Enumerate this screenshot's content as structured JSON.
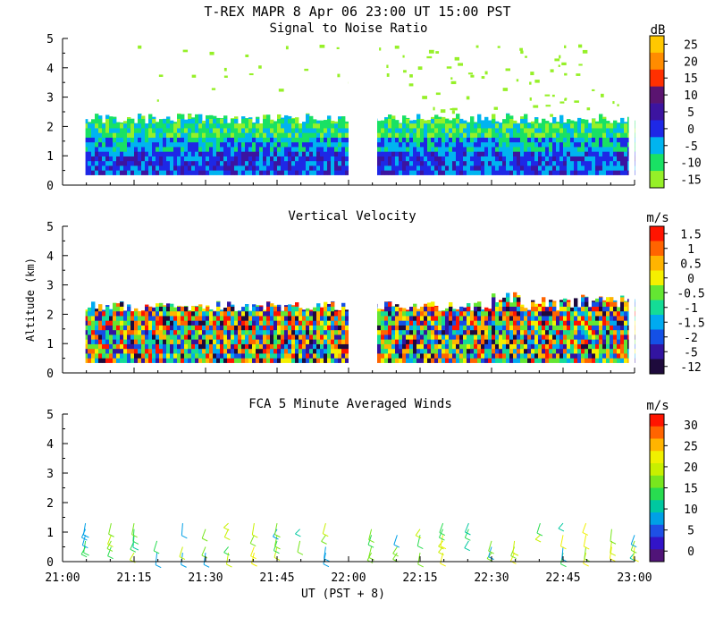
{
  "header": {
    "title": "T-REX  MAPR  8 Apr 06  23:00 UT  15:00  PST"
  },
  "colors": {
    "white": "#ffffff"
  },
  "chart_data": [
    {
      "type": "heatmap",
      "title": "Signal to Noise Ratio",
      "ylabel": "",
      "ylim": [
        0,
        5
      ],
      "y_ticks": [
        "0",
        "1",
        "2",
        "3",
        "4",
        "5"
      ],
      "x_range_hours": [
        21.0,
        23.0
      ],
      "data_gaps_hours": [
        [
          21.0,
          21.08
        ],
        [
          22.0,
          22.1
        ],
        [
          22.98,
          23.0
        ]
      ],
      "colorbar": {
        "unit": "dB",
        "labels": [
          "25",
          "20",
          "15",
          "10",
          "5",
          "0",
          "-5",
          "-10",
          "-15"
        ],
        "colors": [
          "#ffc800",
          "#ff8c00",
          "#ff3000",
          "#5a1470",
          "#3c14a0",
          "#1e28e6",
          "#00b4f0",
          "#19e164",
          "#96f028"
        ]
      }
    },
    {
      "type": "heatmap",
      "title": "Vertical Velocity",
      "ylabel": "Altitude (km)",
      "ylim": [
        0,
        5
      ],
      "y_ticks": [
        "0",
        "1",
        "2",
        "3",
        "4",
        "5"
      ],
      "x_range_hours": [
        21.0,
        23.0
      ],
      "data_gaps_hours": [
        [
          21.0,
          21.08
        ],
        [
          22.0,
          22.1
        ],
        [
          22.98,
          23.0
        ]
      ],
      "colorbar": {
        "unit": "m/s",
        "labels": [
          "1.5",
          "1",
          "0.5",
          "0",
          "-0.5",
          "-1",
          "-1.5",
          "-2",
          "-5",
          "-12"
        ],
        "colors": [
          "#ff1400",
          "#ff6400",
          "#ffb400",
          "#f5f000",
          "#64e632",
          "#14dc96",
          "#00aaf0",
          "#1450e6",
          "#3214a0",
          "#1e0a3c"
        ]
      }
    },
    {
      "type": "barbs",
      "title": "FCA 5 Minute Averaged Winds",
      "ylim": [
        0,
        5
      ],
      "y_ticks": [
        "0",
        "1",
        "2",
        "3",
        "4",
        "5"
      ],
      "x_ticks": [
        "21:00",
        "21:15",
        "21:30",
        "21:45",
        "22:00",
        "22:15",
        "22:30",
        "22:45",
        "23:00"
      ],
      "x_tick_hours": [
        21.0,
        21.25,
        21.5,
        21.75,
        22.0,
        22.25,
        22.5,
        22.75,
        23.0
      ],
      "xlabel": "UT  (PST + 8)",
      "barb_times_hours": [
        21.08,
        21.17,
        21.25,
        21.33,
        21.42,
        21.5,
        21.58,
        21.67,
        21.75,
        21.83,
        21.92,
        22.08,
        22.17,
        22.25,
        22.33,
        22.42,
        22.5,
        22.58,
        22.67,
        22.75,
        22.83,
        22.92,
        23.0
      ],
      "barb_altitudes_km": [
        0.3,
        0.5,
        0.7,
        0.9,
        1.1,
        1.3
      ],
      "colorbar": {
        "unit": "m/s",
        "labels": [
          "30",
          "25",
          "20",
          "15",
          "10",
          "5",
          "0"
        ],
        "colors": [
          "#ff1400",
          "#ff6400",
          "#ffb400",
          "#f0f000",
          "#c8f000",
          "#78e61e",
          "#28dc50",
          "#00c8a0",
          "#00a0e6",
          "#1e50e6",
          "#3214c8",
          "#501478"
        ]
      }
    }
  ]
}
